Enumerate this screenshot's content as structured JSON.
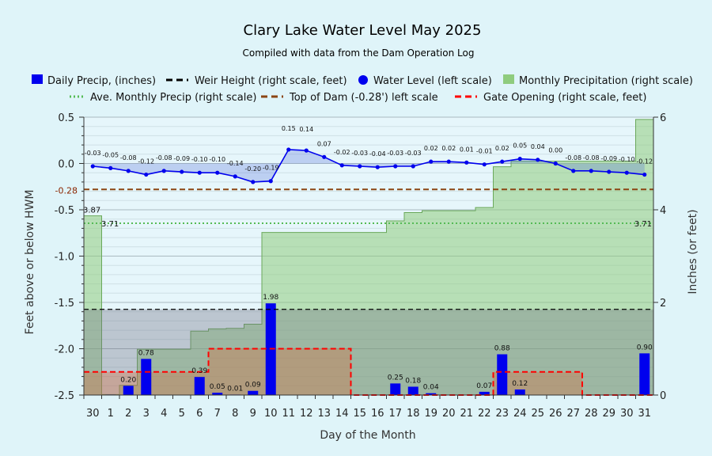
{
  "chart_data": {
    "type": "bar",
    "title": "Clary Lake Water Level May 2025",
    "subtitle": "Compiled with data from the Dam Operation Log",
    "xlabel": "Day of the Month",
    "ylabel_left": "Feet above or below HWM",
    "ylabel_right": "Inches (or feet)",
    "categories": [
      "30",
      "1",
      "2",
      "3",
      "4",
      "5",
      "6",
      "7",
      "8",
      "9",
      "10",
      "11",
      "12",
      "13",
      "14",
      "15",
      "16",
      "17",
      "18",
      "19",
      "20",
      "21",
      "22",
      "23",
      "24",
      "25",
      "26",
      "27",
      "28",
      "29",
      "30",
      "31"
    ],
    "left_axis": {
      "ylim": [
        -2.5,
        0.5
      ],
      "ticks": [
        "0.5",
        "0.0",
        "-0.5",
        "-1.0",
        "-1.5",
        "-2.0",
        "-2.5"
      ],
      "extra_tick": "-0.28"
    },
    "right_axis": {
      "ylim": [
        0,
        6
      ],
      "ticks": [
        "0",
        "2",
        "4",
        "6"
      ]
    },
    "grid": true,
    "legend_position": "top",
    "legend": [
      {
        "label": "Daily Precip, (inches)",
        "kind": "bar",
        "color": "#0000ee"
      },
      {
        "label": "Weir Height (right scale, feet)",
        "kind": "dash",
        "color": "#000000"
      },
      {
        "label": "Water Level (left scale)",
        "kind": "dot",
        "color": "#0000ee"
      },
      {
        "label": "Monthly Precipitation (right scale)",
        "kind": "area",
        "color": "#8fcc7e"
      },
      {
        "label": "Ave. Monthly Precip (right scale)",
        "kind": "dotted",
        "color": "#55bb55"
      },
      {
        "label": "Top of Dam (-0.28') left scale",
        "kind": "dash",
        "color": "#8b4513"
      },
      {
        "label": "Gate Opening (right scale, feet)",
        "kind": "dash",
        "color": "#ff0000"
      }
    ],
    "series": [
      {
        "name": "Daily Precip, (inches)",
        "axis": "right",
        "values": [
          null,
          0.01,
          0.2,
          0.78,
          null,
          null,
          0.39,
          0.05,
          0.01,
          0.09,
          1.98,
          null,
          null,
          null,
          null,
          null,
          null,
          0.25,
          0.18,
          0.04,
          null,
          null,
          0.07,
          0.88,
          0.12,
          null,
          null,
          null,
          null,
          null,
          null,
          0.9
        ],
        "labels": [
          "",
          "",
          "0.20",
          "0.78",
          "",
          "",
          "0.39",
          "0.05",
          "0.01",
          "0.09",
          "1.98",
          "",
          "",
          "",
          "",
          "",
          "",
          "0.25",
          "0.18",
          "0.04",
          "",
          "",
          "0.07",
          "0.88",
          "0.12",
          "",
          "",
          "",
          "",
          "",
          "",
          "0.90"
        ]
      },
      {
        "name": "Water Level (left scale)",
        "axis": "left",
        "values": [
          -0.03,
          -0.05,
          -0.08,
          -0.12,
          -0.08,
          -0.09,
          -0.1,
          -0.1,
          -0.14,
          -0.2,
          -0.19,
          0.15,
          0.14,
          0.07,
          -0.02,
          -0.03,
          -0.04,
          -0.03,
          -0.03,
          0.02,
          0.02,
          0.01,
          -0.01,
          0.02,
          0.05,
          0.04,
          0.0,
          -0.08,
          -0.08,
          -0.09,
          -0.1,
          -0.12
        ],
        "labels": [
          "-0.03",
          "-0.05",
          "-0.08",
          "-0.12",
          "-0.08",
          "-0.09",
          "-0.10",
          "-0.10",
          "-0.14",
          "-0.20",
          "-0.19",
          "0.15",
          "0.14",
          "0.07",
          "-0.02",
          "-0.03",
          "-0.04",
          "-0.03",
          "-0.03",
          "0.02",
          "0.02",
          "0.01",
          "-0.01",
          "0.02",
          "0.05",
          "0.04",
          "0.00",
          "-0.08",
          "-0.08",
          "-0.09",
          "-0.10",
          "-0.12"
        ]
      },
      {
        "name": "Monthly Precipitation (right scale)",
        "axis": "right",
        "values": [
          3.87,
          0.01,
          0.21,
          0.99,
          0.99,
          0.99,
          1.38,
          1.43,
          1.44,
          1.53,
          3.51,
          3.51,
          3.51,
          3.51,
          3.51,
          3.51,
          3.51,
          3.76,
          3.94,
          3.98,
          3.98,
          3.98,
          4.05,
          4.93,
          5.05,
          5.05,
          5.05,
          5.05,
          5.05,
          5.05,
          5.05,
          5.95
        ],
        "labels": [
          "3.87",
          "",
          "",
          "",
          "",
          "",
          "",
          "",
          "",
          "",
          "",
          "",
          "",
          "",
          "",
          "",
          "",
          "",
          "",
          "",
          "",
          "",
          "",
          "",
          "",
          "",
          "",
          "",
          "",
          "",
          "",
          ""
        ]
      },
      {
        "name": "Ave. Monthly Precip (right scale)",
        "axis": "right",
        "value": 3.71,
        "labels": [
          "3.71",
          "3.71"
        ]
      },
      {
        "name": "Weir Height (right scale, feet)",
        "axis": "right",
        "value": 1.85
      },
      {
        "name": "Top of Dam (-0.28') left scale",
        "axis": "left",
        "value": -0.28
      },
      {
        "name": "Gate Opening (right scale, feet)",
        "axis": "right",
        "values": [
          0.5,
          0.5,
          0.5,
          0.5,
          0.5,
          0.5,
          0.5,
          1.0,
          1.0,
          1.0,
          1.0,
          1.0,
          1.0,
          1.0,
          1.0,
          0,
          0,
          0,
          0,
          0,
          0,
          0,
          0,
          0.5,
          0.5,
          0.5,
          0.5,
          0.5,
          0,
          0,
          0,
          0
        ]
      }
    ]
  }
}
